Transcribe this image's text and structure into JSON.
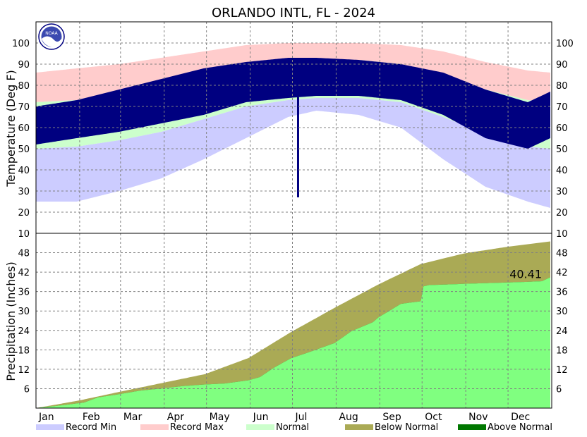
{
  "chart_data": {
    "type": "area",
    "title": "ORLANDO INTL, FL - 2024",
    "months": [
      "Jan",
      "Feb",
      "Mar",
      "Apr",
      "May",
      "Jun",
      "Jul",
      "Aug",
      "Sep",
      "Oct",
      "Nov",
      "Dec"
    ],
    "x_unit": "day_of_year",
    "legend_position": "bottom",
    "grid": true,
    "panels": [
      {
        "name": "temperature",
        "ylabel": "Temperature (Deg F)",
        "ylim": [
          10,
          110
        ],
        "yticks": [
          10,
          20,
          30,
          40,
          50,
          60,
          70,
          80,
          90,
          100
        ],
        "series_colors": {
          "record_min": "#ccccff",
          "record_max": "#ffcccc",
          "normal": "#ccffcc",
          "observed": "#000080"
        },
        "record_max_curve": {
          "day": [
            1,
            30,
            60,
            90,
            120,
            150,
            180,
            200,
            230,
            260,
            290,
            320,
            350,
            366
          ],
          "value": [
            86,
            88,
            90,
            93,
            96,
            99,
            100,
            100,
            100,
            99,
            96,
            91,
            87,
            86
          ]
        },
        "record_min_curve": {
          "day": [
            1,
            30,
            60,
            90,
            120,
            150,
            180,
            200,
            230,
            260,
            290,
            320,
            350,
            366
          ],
          "value": [
            25,
            25,
            30,
            36,
            45,
            55,
            65,
            68,
            66,
            60,
            45,
            32,
            25,
            22
          ]
        },
        "normal_high_curve": {
          "day": [
            1,
            30,
            60,
            90,
            120,
            150,
            180,
            200,
            230,
            260,
            290,
            320,
            350,
            366
          ],
          "value": [
            72,
            73,
            77,
            82,
            87,
            90,
            92,
            92,
            92,
            90,
            85,
            78,
            73,
            72
          ]
        },
        "normal_low_curve": {
          "day": [
            1,
            30,
            60,
            90,
            120,
            150,
            180,
            200,
            230,
            260,
            290,
            320,
            350,
            366
          ],
          "value": [
            50,
            51,
            54,
            58,
            64,
            70,
            73,
            74,
            74,
            72,
            65,
            57,
            51,
            50
          ]
        },
        "observed_high_curve": {
          "day": [
            1,
            30,
            60,
            90,
            120,
            150,
            180,
            200,
            230,
            260,
            290,
            320,
            350,
            366
          ],
          "value": [
            70,
            73,
            78,
            83,
            88,
            91,
            93,
            93,
            92,
            90,
            86,
            78,
            72,
            77
          ]
        },
        "observed_low_curve": {
          "day": [
            1,
            30,
            60,
            90,
            120,
            150,
            180,
            200,
            230,
            260,
            290,
            320,
            350,
            366
          ],
          "value": [
            52,
            55,
            58,
            62,
            66,
            72,
            74,
            75,
            75,
            73,
            66,
            55,
            50,
            55
          ]
        },
        "annotation_outlier": {
          "day": 187,
          "low": 27
        }
      },
      {
        "name": "precipitation",
        "ylabel": "Precipitation (Inches)",
        "ylim": [
          0,
          54
        ],
        "yticks": [
          6,
          12,
          18,
          24,
          30,
          36,
          42,
          48
        ],
        "series_colors": {
          "below_normal": "#aaaa55",
          "above_normal": "#007700",
          "observed": "#80ff80"
        },
        "normal_cumulative": {
          "day": [
            1,
            31,
            60,
            91,
            121,
            152,
            182,
            213,
            244,
            274,
            305,
            335,
            366
          ],
          "value": [
            0,
            2.3,
            5.0,
            7.8,
            10.5,
            15.5,
            23.5,
            31.0,
            38.2,
            44.5,
            47.8,
            49.8,
            51.5
          ]
        },
        "observed_cumulative": {
          "day": [
            1,
            20,
            31,
            35,
            45,
            60,
            75,
            91,
            105,
            121,
            135,
            152,
            160,
            170,
            182,
            195,
            213,
            225,
            240,
            244,
            260,
            274,
            276,
            280,
            300,
            305,
            320,
            335,
            350,
            360,
            364,
            366
          ],
          "value": [
            0,
            0.9,
            1.5,
            1.7,
            3.3,
            4.3,
            5.4,
            6.1,
            6.8,
            7.3,
            7.6,
            8.6,
            9.6,
            12.5,
            15.4,
            17.3,
            20.1,
            23.8,
            26.5,
            28.0,
            32.2,
            33.0,
            37.6,
            38.0,
            38.3,
            38.4,
            38.6,
            38.8,
            39.0,
            39.2,
            40.0,
            40.41
          ]
        },
        "total_label": "40.41"
      }
    ],
    "legend": [
      {
        "label": "Record Min",
        "color": "#ccccff"
      },
      {
        "label": "Record Max",
        "color": "#ffcccc"
      },
      {
        "label": "Normal",
        "color": "#ccffcc"
      },
      {
        "label": "Below Normal",
        "color": "#aaaa55"
      },
      {
        "label": "Above Normal",
        "color": "#007700"
      }
    ]
  }
}
